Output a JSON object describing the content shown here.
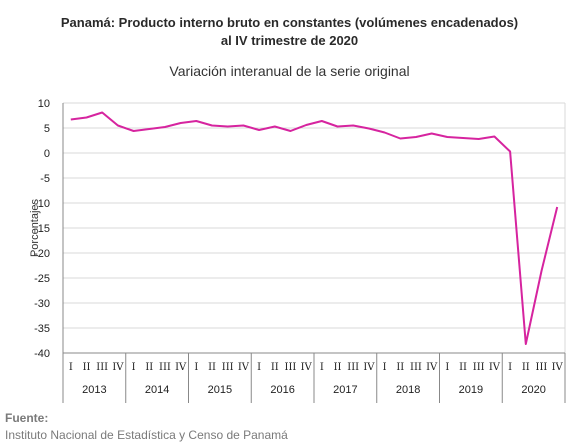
{
  "chart_data": {
    "type": "line",
    "title_line1": "Panamá: Producto interno bruto en constantes (volúmenes encadenados)",
    "title_line2": "al IV trimestre de 2020",
    "subtitle": "Variación interanual de la serie original",
    "ylabel": "Porcentajes",
    "ylim": [
      -40,
      10
    ],
    "yticks": [
      10,
      5,
      0,
      -5,
      -10,
      -15,
      -20,
      -25,
      -30,
      -35,
      -40
    ],
    "grid": true,
    "quarter_labels": [
      "I",
      "II",
      "III",
      "IV"
    ],
    "years": [
      "2013",
      "2014",
      "2015",
      "2016",
      "2017",
      "2018",
      "2019",
      "2020"
    ],
    "series": [
      {
        "color": "#d6249f",
        "values": [
          6.7,
          7.1,
          8.1,
          5.5,
          4.4,
          4.8,
          5.2,
          6.0,
          6.4,
          5.5,
          5.3,
          5.5,
          4.6,
          5.3,
          4.4,
          5.6,
          6.4,
          5.3,
          5.5,
          4.9,
          4.1,
          2.9,
          3.2,
          3.9,
          3.2,
          3.0,
          2.8,
          3.3,
          0.3,
          -38.2,
          -23.6,
          -10.8
        ]
      }
    ]
  },
  "source": {
    "label": "Fuente:",
    "text": "Instituto Nacional de Estadística y Censo de Panamá"
  }
}
